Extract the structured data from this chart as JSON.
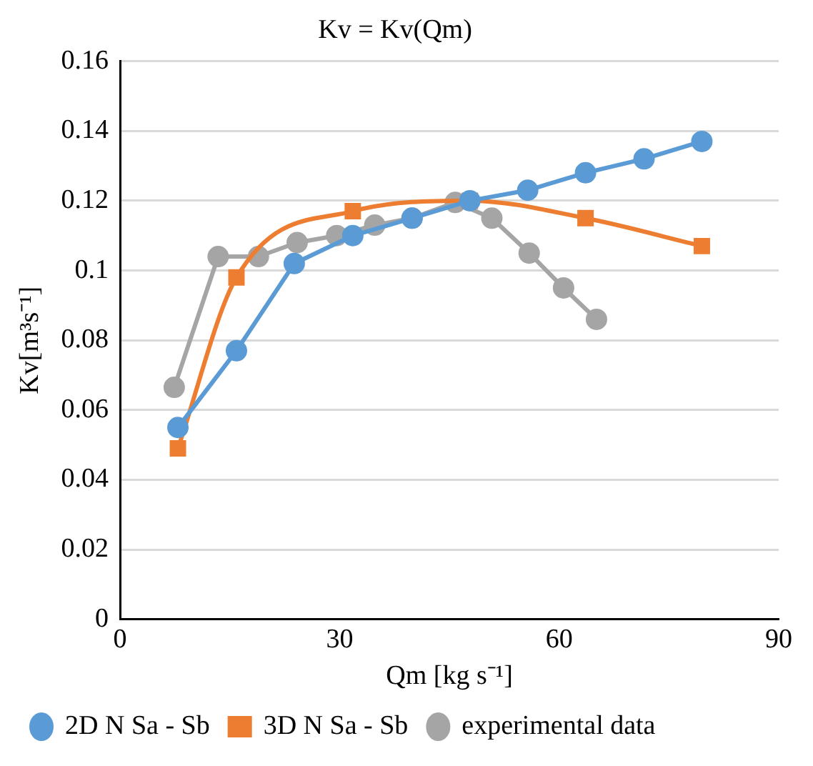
{
  "chart_data": {
    "type": "line",
    "title": "Kv = Kv(Qm)",
    "xlabel": "Qm [kg s⁻¹]",
    "ylabel": "Kv[m³s⁻¹]",
    "xlim": [
      0,
      90
    ],
    "xticks": [
      0,
      30,
      60,
      90
    ],
    "ylim": [
      0,
      0.16
    ],
    "yticks": [
      0,
      0.02,
      0.04,
      0.06,
      0.08,
      0.1,
      0.12,
      0.14,
      0.16
    ],
    "grid": "y",
    "legend": "bottom",
    "marker": "circle",
    "series": [
      {
        "name": "2D N Sa - Sb",
        "color": "#5b9bd5",
        "x": [
          7.9,
          15.9,
          23.8,
          31.8,
          39.9,
          47.8,
          55.7,
          63.6,
          71.6,
          79.5
        ],
        "values": [
          0.055,
          0.077,
          0.102,
          0.11,
          0.115,
          0.12,
          0.123,
          0.128,
          0.132,
          0.137
        ]
      },
      {
        "name": "3D N Sa - Sb",
        "color": "#ed7d31",
        "marker": "square",
        "x": [
          7.9,
          15.9,
          31.8,
          47.8,
          63.6,
          79.5
        ],
        "values": [
          0.049,
          0.098,
          0.117,
          0.12,
          0.115,
          0.107
        ]
      },
      {
        "name": "experimental data",
        "color": "#a5a5a5",
        "x": [
          7.4,
          13.4,
          18.9,
          24.2,
          29.6,
          34.8,
          39.9,
          45.8,
          50.8,
          55.9,
          60.6,
          65.1
        ],
        "values": [
          0.0665,
          0.104,
          0.104,
          0.108,
          0.11,
          0.113,
          0.115,
          0.1195,
          0.115,
          0.105,
          0.095,
          0.086
        ]
      }
    ]
  }
}
